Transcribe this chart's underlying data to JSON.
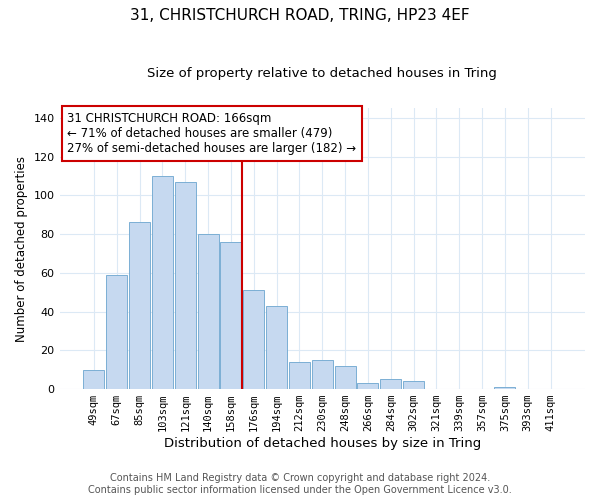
{
  "title": "31, CHRISTCHURCH ROAD, TRING, HP23 4EF",
  "subtitle": "Size of property relative to detached houses in Tring",
  "xlabel": "Distribution of detached houses by size in Tring",
  "ylabel": "Number of detached properties",
  "bar_labels": [
    "49sqm",
    "67sqm",
    "85sqm",
    "103sqm",
    "121sqm",
    "140sqm",
    "158sqm",
    "176sqm",
    "194sqm",
    "212sqm",
    "230sqm",
    "248sqm",
    "266sqm",
    "284sqm",
    "302sqm",
    "321sqm",
    "339sqm",
    "357sqm",
    "375sqm",
    "393sqm",
    "411sqm"
  ],
  "bar_heights": [
    10,
    59,
    86,
    110,
    107,
    80,
    76,
    51,
    43,
    14,
    15,
    12,
    3,
    5,
    4,
    0,
    0,
    0,
    1,
    0,
    0
  ],
  "bar_color": "#c6d9f0",
  "bar_edge_color": "#7bafd4",
  "vline_color": "#cc0000",
  "annotation_line1": "31 CHRISTCHURCH ROAD: 166sqm",
  "annotation_line2": "← 71% of detached houses are smaller (479)",
  "annotation_line3": "27% of semi-detached houses are larger (182) →",
  "annotation_box_color": "#cc0000",
  "ylim": [
    0,
    145
  ],
  "yticks": [
    0,
    20,
    40,
    60,
    80,
    100,
    120,
    140
  ],
  "footer_line1": "Contains HM Land Registry data © Crown copyright and database right 2024.",
  "footer_line2": "Contains public sector information licensed under the Open Government Licence v3.0.",
  "background_color": "#ffffff",
  "grid_color": "#dce9f5"
}
